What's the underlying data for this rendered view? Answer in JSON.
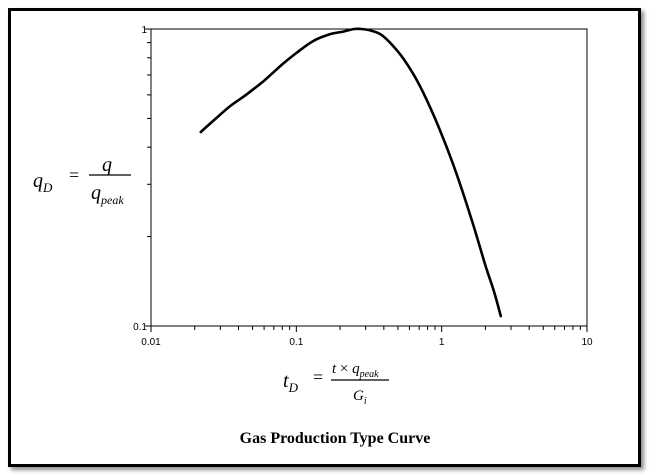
{
  "chart_data": {
    "type": "line",
    "title": "Gas Production Type Curve",
    "x_scale": "log",
    "y_scale": "log",
    "xlim": [
      0.01,
      10
    ],
    "ylim": [
      0.1,
      1
    ],
    "x_ticks": [
      "0.01",
      "0.1",
      "1",
      "10"
    ],
    "y_ticks": [
      "0.1",
      "1"
    ],
    "ylabel": {
      "lhs": "q",
      "lhs_sub": "D",
      "eq": "=",
      "numerator": "q",
      "denominator": "q",
      "denominator_sub": "peak"
    },
    "xlabel": {
      "lhs": "t",
      "lhs_sub": "D",
      "eq": "=",
      "numerator_t": "t",
      "times": "×",
      "numerator_q": "q",
      "numerator_sub": "peak",
      "denominator": "G",
      "denominator_sub": "i"
    },
    "grid": false,
    "series": [
      {
        "color": "#000000",
        "x": [
          0.022,
          0.028,
          0.035,
          0.045,
          0.06,
          0.08,
          0.1,
          0.13,
          0.17,
          0.21,
          0.25,
          0.28,
          0.32,
          0.38,
          0.45,
          0.55,
          0.7,
          0.9,
          1.2,
          1.6,
          2.0,
          2.3,
          2.55
        ],
        "y": [
          0.45,
          0.5,
          0.55,
          0.6,
          0.67,
          0.76,
          0.83,
          0.91,
          0.96,
          0.98,
          1.0,
          1.0,
          0.99,
          0.96,
          0.89,
          0.79,
          0.65,
          0.5,
          0.35,
          0.23,
          0.16,
          0.13,
          0.108
        ]
      }
    ]
  }
}
